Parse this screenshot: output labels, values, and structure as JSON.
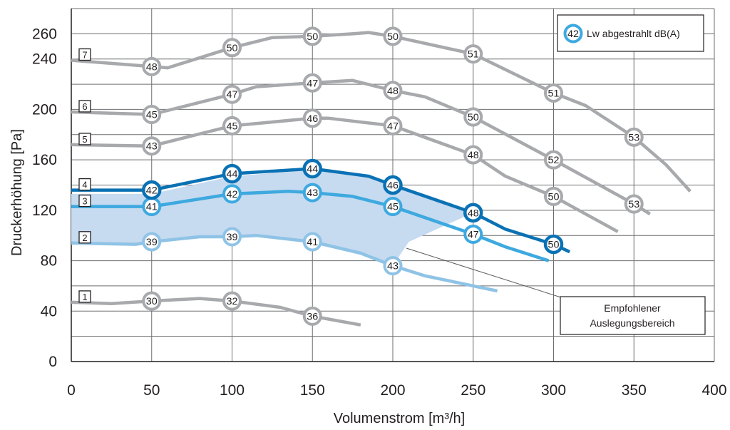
{
  "chart_data": {
    "type": "line",
    "xlabel": "Volumenstrom [m³/h]",
    "ylabel": "Druckerhöhung [Pa]",
    "xlim": [
      0,
      400
    ],
    "ylim": [
      0,
      280
    ],
    "x_ticks": [
      "0",
      "50",
      "100",
      "150",
      "200",
      "250",
      "300",
      "350",
      "400"
    ],
    "y_ticks": [
      "0",
      "40",
      "80",
      "120",
      "160",
      "200",
      "240",
      "260"
    ],
    "grid": true,
    "legend": {
      "placement": "top-right",
      "sample_value": "42",
      "label": "Lw abgestrahlt dB(A)"
    },
    "recommended_area": {
      "label_line1": "Empfohlener",
      "label_line2": "Auslegungsbereich",
      "polygon": [
        [
          0,
          133
        ],
        [
          10,
          133
        ],
        [
          30,
          133
        ],
        [
          50,
          133
        ],
        [
          100,
          147
        ],
        [
          150,
          152
        ],
        [
          185,
          146
        ],
        [
          200,
          140
        ],
        [
          250,
          118
        ],
        [
          210,
          95
        ],
        [
          200,
          76
        ],
        [
          185,
          85
        ],
        [
          150,
          96
        ],
        [
          115,
          100
        ],
        [
          100,
          99
        ],
        [
          75,
          98
        ],
        [
          50,
          95
        ],
        [
          40,
          93
        ],
        [
          0,
          93
        ]
      ],
      "color": "#c6daf0"
    },
    "series": [
      {
        "name": "1",
        "color": "#a7a9ac",
        "values": [
          [
            0,
            47
          ],
          [
            25,
            46
          ],
          [
            50,
            48
          ],
          [
            80,
            50
          ],
          [
            100,
            48
          ],
          [
            130,
            43
          ],
          [
            150,
            36
          ],
          [
            180,
            29
          ]
        ],
        "markers": [
          {
            "x": 50,
            "y": 48,
            "label": "30"
          },
          {
            "x": 100,
            "y": 48,
            "label": "32"
          },
          {
            "x": 150,
            "y": 36,
            "label": "36"
          }
        ]
      },
      {
        "name": "2",
        "color": "#8fc3e6",
        "values": [
          [
            0,
            94
          ],
          [
            40,
            93
          ],
          [
            50,
            95
          ],
          [
            80,
            99
          ],
          [
            100,
            99
          ],
          [
            115,
            100
          ],
          [
            150,
            95
          ],
          [
            180,
            86
          ],
          [
            200,
            76
          ],
          [
            220,
            68
          ],
          [
            250,
            60
          ],
          [
            265,
            56
          ]
        ],
        "markers": [
          {
            "x": 50,
            "y": 95,
            "label": "39"
          },
          {
            "x": 100,
            "y": 99,
            "label": "39"
          },
          {
            "x": 150,
            "y": 95,
            "label": "41"
          },
          {
            "x": 200,
            "y": 76,
            "label": "43"
          }
        ]
      },
      {
        "name": "3",
        "color": "#3da9df",
        "values": [
          [
            0,
            123
          ],
          [
            40,
            123
          ],
          [
            50,
            123
          ],
          [
            100,
            133
          ],
          [
            135,
            135
          ],
          [
            150,
            134
          ],
          [
            175,
            131
          ],
          [
            200,
            123
          ],
          [
            250,
            101
          ],
          [
            270,
            91
          ],
          [
            297,
            80
          ]
        ],
        "markers": [
          {
            "x": 50,
            "y": 123,
            "label": "41"
          },
          {
            "x": 100,
            "y": 133,
            "label": "42"
          },
          {
            "x": 150,
            "y": 134,
            "label": "43"
          },
          {
            "x": 200,
            "y": 123,
            "label": "45"
          },
          {
            "x": 250,
            "y": 101,
            "label": "47"
          }
        ]
      },
      {
        "name": "4",
        "color": "#0a72b4",
        "values": [
          [
            0,
            136
          ],
          [
            30,
            136
          ],
          [
            50,
            136
          ],
          [
            100,
            149
          ],
          [
            150,
            153
          ],
          [
            185,
            147
          ],
          [
            200,
            140
          ],
          [
            250,
            118
          ],
          [
            270,
            105
          ],
          [
            300,
            93
          ],
          [
            310,
            87
          ]
        ],
        "markers": [
          {
            "x": 50,
            "y": 136,
            "label": "42"
          },
          {
            "x": 100,
            "y": 149,
            "label": "44"
          },
          {
            "x": 150,
            "y": 153,
            "label": "44"
          },
          {
            "x": 200,
            "y": 140,
            "label": "46"
          },
          {
            "x": 250,
            "y": 118,
            "label": "48"
          },
          {
            "x": 300,
            "y": 93,
            "label": "50"
          }
        ]
      },
      {
        "name": "5",
        "color": "#a7a9ac",
        "values": [
          [
            0,
            172
          ],
          [
            50,
            171
          ],
          [
            100,
            187
          ],
          [
            150,
            193
          ],
          [
            160,
            193
          ],
          [
            200,
            187
          ],
          [
            250,
            164
          ],
          [
            270,
            147
          ],
          [
            300,
            131
          ],
          [
            320,
            117
          ],
          [
            340,
            103
          ]
        ],
        "markers": [
          {
            "x": 50,
            "y": 171,
            "label": "43"
          },
          {
            "x": 100,
            "y": 187,
            "label": "45"
          },
          {
            "x": 150,
            "y": 193,
            "label": "46"
          },
          {
            "x": 200,
            "y": 187,
            "label": "47"
          },
          {
            "x": 250,
            "y": 164,
            "label": "48"
          },
          {
            "x": 300,
            "y": 131,
            "label": "50"
          }
        ]
      },
      {
        "name": "6",
        "color": "#a7a9ac",
        "values": [
          [
            0,
            198
          ],
          [
            50,
            196
          ],
          [
            100,
            212
          ],
          [
            115,
            218
          ],
          [
            150,
            221
          ],
          [
            175,
            223
          ],
          [
            200,
            215
          ],
          [
            220,
            210
          ],
          [
            250,
            194
          ],
          [
            300,
            160
          ],
          [
            350,
            125
          ],
          [
            360,
            117
          ]
        ],
        "markers": [
          {
            "x": 50,
            "y": 196,
            "label": "45"
          },
          {
            "x": 100,
            "y": 212,
            "label": "47"
          },
          {
            "x": 150,
            "y": 221,
            "label": "47"
          },
          {
            "x": 200,
            "y": 215,
            "label": "48"
          },
          {
            "x": 250,
            "y": 194,
            "label": "50"
          },
          {
            "x": 300,
            "y": 160,
            "label": "52"
          },
          {
            "x": 350,
            "y": 125,
            "label": "53"
          }
        ]
      },
      {
        "name": "7",
        "color": "#a7a9ac",
        "values": [
          [
            0,
            239
          ],
          [
            50,
            234
          ],
          [
            60,
            233
          ],
          [
            100,
            249
          ],
          [
            125,
            257
          ],
          [
            150,
            258
          ],
          [
            175,
            260
          ],
          [
            185,
            261
          ],
          [
            200,
            258
          ],
          [
            250,
            244
          ],
          [
            300,
            213
          ],
          [
            320,
            203
          ],
          [
            350,
            178
          ],
          [
            370,
            156
          ],
          [
            385,
            135
          ]
        ],
        "markers": [
          {
            "x": 50,
            "y": 234,
            "label": "48"
          },
          {
            "x": 100,
            "y": 249,
            "label": "50"
          },
          {
            "x": 150,
            "y": 258,
            "label": "50"
          },
          {
            "x": 200,
            "y": 258,
            "label": "50"
          },
          {
            "x": 250,
            "y": 244,
            "label": "51"
          },
          {
            "x": 300,
            "y": 213,
            "label": "51"
          },
          {
            "x": 350,
            "y": 178,
            "label": "53"
          }
        ]
      }
    ]
  }
}
